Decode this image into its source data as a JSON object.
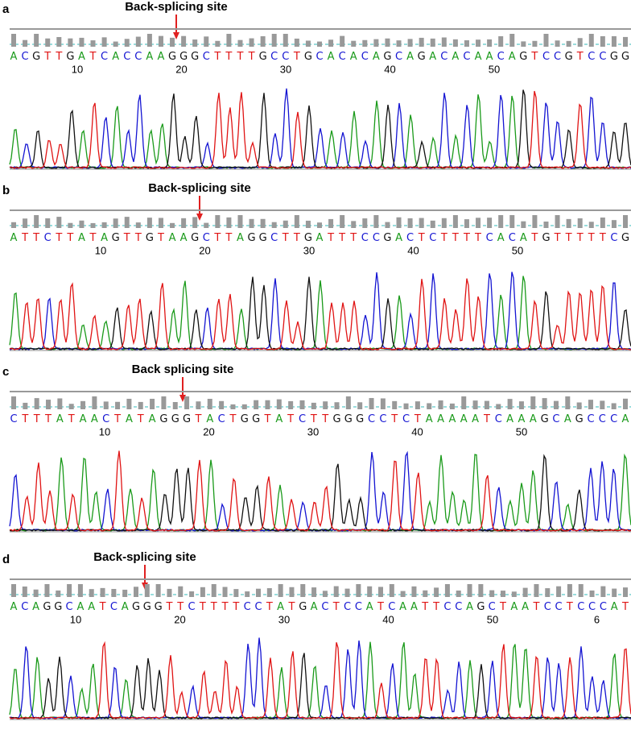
{
  "panels": [
    {
      "label": "a",
      "annotation": "Back-splicing site",
      "sequence": "ACGTTGATCACCAAGGGCTTTTGCCTGCACACAGCAGACACAACAGTCCGTCCGG",
      "positions": [
        "10",
        "20",
        "30",
        "40",
        "50"
      ]
    },
    {
      "label": "b",
      "annotation": "Back-splicing site",
      "sequence": "ATTCTTATAGTTGTAAGCTTAGGCTTGATTTCCGACTCTTTTCACATGTTTTTCG",
      "positions": [
        "10",
        "20",
        "30",
        "40",
        "50"
      ]
    },
    {
      "label": "c",
      "annotation": "Back splicing site",
      "sequence": "CTTTATAACTATAGGGTACTGGTATCTTGGGCCTCTAAAAATCAAAGCAGCCCA",
      "positions": [
        "10",
        "20",
        "30",
        "40",
        "50"
      ]
    },
    {
      "label": "d",
      "annotation": "Back-splicing site",
      "sequence": "ACAGGCAATCAGGGTTCTTTTCCTATGACTCCATCAATTCCAGCTAATCCTCCCAT",
      "positions": [
        "10",
        "20",
        "30",
        "40",
        "50",
        "6"
      ]
    }
  ]
}
